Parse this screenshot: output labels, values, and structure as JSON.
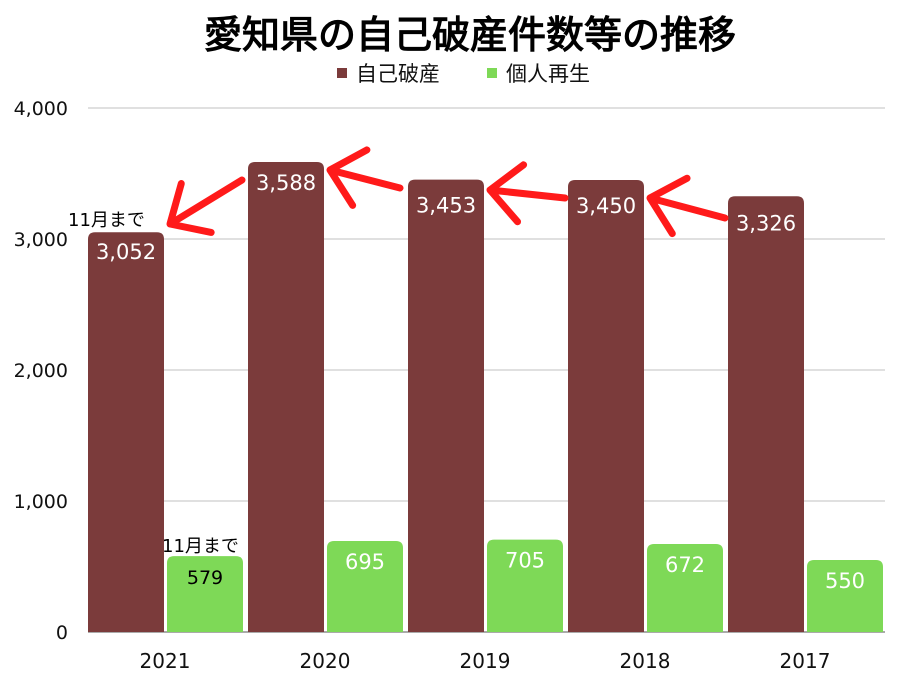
{
  "chart_data": {
    "type": "bar",
    "title": "愛知県の自己破産件数等の推移",
    "categories": [
      "2021",
      "2020",
      "2019",
      "2018",
      "2017"
    ],
    "series": [
      {
        "name": "自己破産",
        "color": "#7b3b3b",
        "values": [
          3052,
          3588,
          3453,
          3450,
          3326
        ],
        "labels": [
          "3,052",
          "3,588",
          "3,453",
          "3,450",
          "3,326"
        ]
      },
      {
        "name": "個人再生",
        "color": "#7ed957",
        "values": [
          579,
          695,
          705,
          672,
          550
        ],
        "labels": [
          "579",
          "695",
          "705",
          "672",
          "550"
        ]
      }
    ],
    "ylim": [
      0,
      4000
    ],
    "yticks": [
      0,
      1000,
      2000,
      3000,
      4000
    ],
    "ytick_labels": [
      "0",
      "1,000",
      "2,000",
      "3,000",
      "4,000"
    ],
    "grid": true,
    "legend": "top-center",
    "xlabel": "",
    "ylabel": "",
    "annotations": {
      "partial_year_note": "11月まで",
      "arrow_color": "#ff1a1a"
    }
  }
}
